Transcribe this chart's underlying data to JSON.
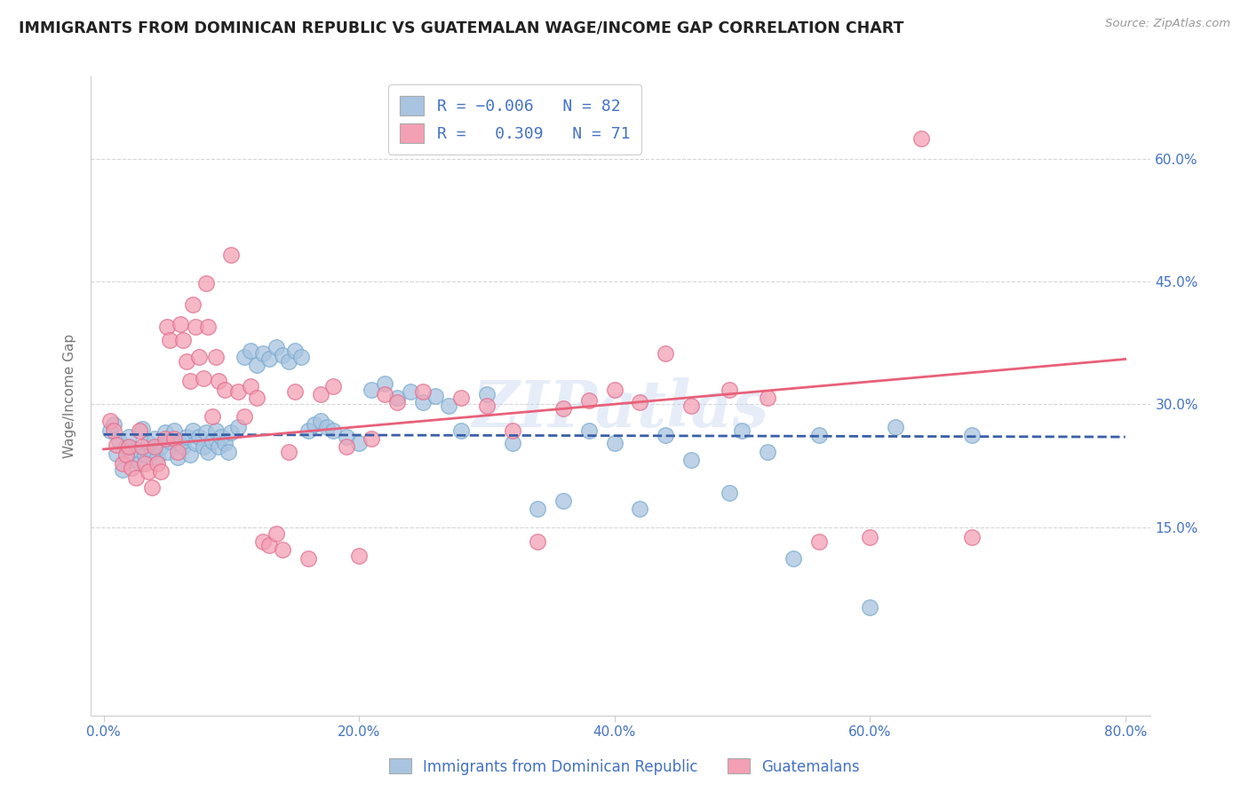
{
  "title": "IMMIGRANTS FROM DOMINICAN REPUBLIC VS GUATEMALAN WAGE/INCOME GAP CORRELATION CHART",
  "source": "Source: ZipAtlas.com",
  "ylabel": "Wage/Income Gap",
  "x_tick_labels": [
    "0.0%",
    "",
    "20.0%",
    "",
    "40.0%",
    "",
    "60.0%",
    "",
    "80.0%"
  ],
  "x_tick_positions": [
    0.0,
    0.1,
    0.2,
    0.3,
    0.4,
    0.5,
    0.6,
    0.7,
    0.8
  ],
  "y_tick_labels": [
    "15.0%",
    "30.0%",
    "45.0%",
    "60.0%"
  ],
  "y_tick_positions": [
    0.15,
    0.3,
    0.45,
    0.6
  ],
  "xlim": [
    -0.01,
    0.82
  ],
  "ylim": [
    -0.08,
    0.7
  ],
  "watermark": "ZIPatlas",
  "blue_color": "#a8c4e0",
  "pink_color": "#f4a0b4",
  "blue_line_color": "#3a5fa8",
  "pink_line_color": "#e8607a",
  "axis_tick_color": "#4472c4",
  "grid_color": "#cccccc",
  "background_color": "#ffffff",
  "blue_scatter_x": [
    0.005,
    0.008,
    0.01,
    0.012,
    0.015,
    0.018,
    0.02,
    0.022,
    0.025,
    0.028,
    0.03,
    0.032,
    0.035,
    0.038,
    0.04,
    0.042,
    0.045,
    0.048,
    0.05,
    0.052,
    0.055,
    0.058,
    0.06,
    0.062,
    0.065,
    0.068,
    0.07,
    0.072,
    0.075,
    0.078,
    0.08,
    0.082,
    0.085,
    0.088,
    0.09,
    0.092,
    0.095,
    0.098,
    0.1,
    0.105,
    0.11,
    0.115,
    0.12,
    0.125,
    0.13,
    0.135,
    0.14,
    0.145,
    0.15,
    0.155,
    0.16,
    0.165,
    0.17,
    0.175,
    0.18,
    0.19,
    0.2,
    0.21,
    0.22,
    0.23,
    0.24,
    0.25,
    0.26,
    0.27,
    0.28,
    0.3,
    0.32,
    0.34,
    0.36,
    0.38,
    0.4,
    0.42,
    0.44,
    0.46,
    0.49,
    0.5,
    0.52,
    0.54,
    0.56,
    0.6,
    0.62,
    0.68
  ],
  "blue_scatter_y": [
    0.268,
    0.275,
    0.24,
    0.255,
    0.22,
    0.248,
    0.26,
    0.232,
    0.245,
    0.228,
    0.27,
    0.238,
    0.252,
    0.242,
    0.258,
    0.235,
    0.248,
    0.265,
    0.242,
    0.255,
    0.268,
    0.235,
    0.252,
    0.248,
    0.26,
    0.238,
    0.268,
    0.252,
    0.26,
    0.248,
    0.265,
    0.242,
    0.255,
    0.268,
    0.248,
    0.26,
    0.252,
    0.242,
    0.265,
    0.272,
    0.358,
    0.365,
    0.348,
    0.362,
    0.355,
    0.37,
    0.36,
    0.352,
    0.365,
    0.358,
    0.268,
    0.275,
    0.28,
    0.272,
    0.268,
    0.26,
    0.252,
    0.318,
    0.325,
    0.308,
    0.315,
    0.302,
    0.31,
    0.298,
    0.268,
    0.312,
    0.252,
    0.172,
    0.182,
    0.268,
    0.252,
    0.172,
    0.262,
    0.232,
    0.192,
    0.268,
    0.242,
    0.112,
    0.262,
    0.052,
    0.272,
    0.262
  ],
  "pink_scatter_x": [
    0.005,
    0.008,
    0.01,
    0.015,
    0.018,
    0.02,
    0.022,
    0.025,
    0.028,
    0.03,
    0.032,
    0.035,
    0.038,
    0.04,
    0.042,
    0.045,
    0.048,
    0.05,
    0.052,
    0.055,
    0.058,
    0.06,
    0.062,
    0.065,
    0.068,
    0.07,
    0.072,
    0.075,
    0.078,
    0.08,
    0.082,
    0.085,
    0.088,
    0.09,
    0.095,
    0.1,
    0.105,
    0.11,
    0.115,
    0.12,
    0.125,
    0.13,
    0.135,
    0.14,
    0.145,
    0.15,
    0.16,
    0.17,
    0.18,
    0.19,
    0.2,
    0.21,
    0.22,
    0.23,
    0.25,
    0.28,
    0.3,
    0.32,
    0.34,
    0.36,
    0.38,
    0.4,
    0.42,
    0.44,
    0.46,
    0.49,
    0.52,
    0.56,
    0.6,
    0.64,
    0.68
  ],
  "pink_scatter_y": [
    0.28,
    0.268,
    0.25,
    0.228,
    0.238,
    0.248,
    0.222,
    0.21,
    0.268,
    0.248,
    0.228,
    0.218,
    0.198,
    0.248,
    0.228,
    0.218,
    0.258,
    0.395,
    0.378,
    0.258,
    0.242,
    0.398,
    0.378,
    0.352,
    0.328,
    0.422,
    0.395,
    0.358,
    0.332,
    0.448,
    0.395,
    0.285,
    0.358,
    0.328,
    0.318,
    0.482,
    0.315,
    0.285,
    0.322,
    0.308,
    0.132,
    0.128,
    0.142,
    0.122,
    0.242,
    0.315,
    0.112,
    0.312,
    0.322,
    0.248,
    0.115,
    0.258,
    0.312,
    0.302,
    0.315,
    0.308,
    0.298,
    0.268,
    0.132,
    0.295,
    0.305,
    0.318,
    0.302,
    0.362,
    0.298,
    0.318,
    0.308,
    0.132,
    0.138,
    0.625,
    0.138
  ]
}
